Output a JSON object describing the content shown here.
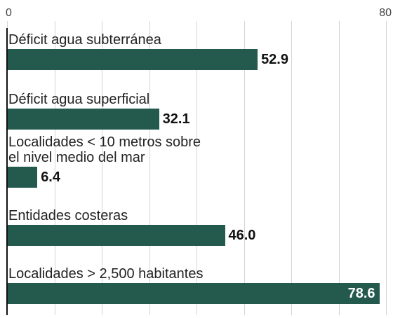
{
  "chart_data": {
    "type": "bar",
    "orientation": "horizontal",
    "categories": [
      "Déficit agua subterránea",
      "Déficit agua superficial",
      "Localidades < 10 metros sobre\nel nivel medio del mar",
      "Entidades costeras",
      "Localidades > 2,500 habitantes"
    ],
    "values": [
      52.9,
      32.1,
      6.4,
      46.0,
      78.6
    ],
    "value_labels": [
      "52.9",
      "32.1",
      "6.4",
      "46.0",
      "78.6"
    ],
    "color": "#245a4e",
    "xlim": [
      0,
      80
    ],
    "xticks": [
      0,
      80
    ],
    "minor_xticks": [
      10,
      20,
      30,
      40,
      50,
      60,
      70
    ],
    "grid": true
  }
}
